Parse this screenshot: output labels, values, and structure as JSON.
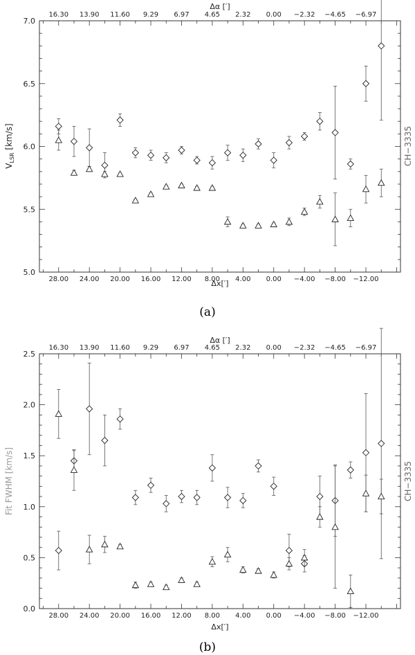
{
  "chart_data": [
    {
      "type": "scatter",
      "caption": "(a)",
      "ylabel_main": "V",
      "ylabel_sub": "LSR",
      "ylabel_unit": " [km/s]",
      "xlabel_main": "Δx",
      "xlabel_unit": "[′]",
      "top_xlabel_main": "Δα",
      "top_xlabel_unit": " [′]",
      "right_label": "CH−3335",
      "xlim": [
        30.5,
        -16.5
      ],
      "ylim": [
        5.0,
        7.0
      ],
      "xtick_labels": [
        {
          "v": 28,
          "t": "28.00"
        },
        {
          "v": 24,
          "t": "24.00"
        },
        {
          "v": 20,
          "t": "20.00"
        },
        {
          "v": 16,
          "t": "16.00"
        },
        {
          "v": 12,
          "t": "12.00"
        },
        {
          "v": 8,
          "t": "8.00"
        },
        {
          "v": 4,
          "t": "4.00"
        },
        {
          "v": 0,
          "t": "0.00"
        },
        {
          "v": -4,
          "t": "−4.00"
        },
        {
          "v": -8,
          "t": "−8.00"
        },
        {
          "v": -12,
          "t": "−12.00"
        }
      ],
      "top_tick_labels": [
        {
          "v": 28,
          "t": "16.30"
        },
        {
          "v": 24,
          "t": "13.90"
        },
        {
          "v": 20,
          "t": "11.60"
        },
        {
          "v": 16,
          "t": "9.29"
        },
        {
          "v": 12,
          "t": "6.97"
        },
        {
          "v": 8,
          "t": "4.65"
        },
        {
          "v": 4,
          "t": "2.32"
        },
        {
          "v": 0,
          "t": "0.00"
        },
        {
          "v": -4,
          "t": "−2.32"
        },
        {
          "v": -8,
          "t": "−4.65"
        },
        {
          "v": -12,
          "t": "−6.97"
        }
      ],
      "ytick_labels": [
        {
          "v": 5.0,
          "t": "5.0"
        },
        {
          "v": 5.5,
          "t": "5.5"
        },
        {
          "v": 6.0,
          "t": "6.0"
        },
        {
          "v": 6.5,
          "t": "6.5"
        },
        {
          "v": 7.0,
          "t": "7.0"
        }
      ],
      "series": [
        {
          "marker": "diamond",
          "points": [
            {
              "x": 28,
              "y": 6.16,
              "err": 0.06
            },
            {
              "x": 26,
              "y": 6.04,
              "err": 0.12
            },
            {
              "x": 24,
              "y": 5.99,
              "err": 0.15
            },
            {
              "x": 22,
              "y": 5.85,
              "err": 0.1
            },
            {
              "x": 20,
              "y": 6.21,
              "err": 0.05
            },
            {
              "x": 18,
              "y": 5.95,
              "err": 0.04
            },
            {
              "x": 16,
              "y": 5.93,
              "err": 0.04
            },
            {
              "x": 14,
              "y": 5.91,
              "err": 0.04
            },
            {
              "x": 12,
              "y": 5.97,
              "err": 0.03
            },
            {
              "x": 10,
              "y": 5.89,
              "err": 0.03
            },
            {
              "x": 8,
              "y": 5.87,
              "err": 0.05
            },
            {
              "x": 6,
              "y": 5.95,
              "err": 0.06
            },
            {
              "x": 4,
              "y": 5.93,
              "err": 0.05
            },
            {
              "x": 2,
              "y": 6.02,
              "err": 0.04
            },
            {
              "x": 0,
              "y": 5.89,
              "err": 0.06
            },
            {
              "x": -2,
              "y": 6.03,
              "err": 0.05
            },
            {
              "x": -4,
              "y": 6.08,
              "err": 0.03
            },
            {
              "x": -6,
              "y": 6.2,
              "err": 0.07
            },
            {
              "x": -8,
              "y": 6.11,
              "err": 0.37
            },
            {
              "x": -10,
              "y": 5.86,
              "err": 0.04
            },
            {
              "x": -12,
              "y": 6.5,
              "err": 0.14
            },
            {
              "x": -14,
              "y": 6.8,
              "err": 0.59
            }
          ]
        },
        {
          "marker": "triangle",
          "points": [
            {
              "x": 28,
              "y": 6.05,
              "err": 0.08
            },
            {
              "x": 26,
              "y": 5.79,
              "err": 0.02
            },
            {
              "x": 24,
              "y": 5.82,
              "err": 0.02
            },
            {
              "x": 22,
              "y": 5.78,
              "err": 0.02
            },
            {
              "x": 20,
              "y": 5.78,
              "err": 0.01
            },
            {
              "x": 18,
              "y": 5.57,
              "err": 0.01
            },
            {
              "x": 16,
              "y": 5.62,
              "err": 0.01
            },
            {
              "x": 14,
              "y": 5.68,
              "err": 0.01
            },
            {
              "x": 12,
              "y": 5.69,
              "err": 0.01
            },
            {
              "x": 10,
              "y": 5.67,
              "err": 0.01
            },
            {
              "x": 8,
              "y": 5.67,
              "err": 0.01
            },
            {
              "x": 6,
              "y": 5.4,
              "err": 0.04
            },
            {
              "x": 4,
              "y": 5.37,
              "err": 0.01
            },
            {
              "x": 2,
              "y": 5.37,
              "err": 0.01
            },
            {
              "x": 0,
              "y": 5.38,
              "err": 0.01
            },
            {
              "x": -2,
              "y": 5.4,
              "err": 0.03
            },
            {
              "x": -4,
              "y": 5.48,
              "err": 0.03
            },
            {
              "x": -6,
              "y": 5.56,
              "err": 0.05
            },
            {
              "x": -8,
              "y": 5.42,
              "err": 0.21
            },
            {
              "x": -10,
              "y": 5.43,
              "err": 0.07
            },
            {
              "x": -12,
              "y": 5.66,
              "err": 0.11
            },
            {
              "x": -14,
              "y": 5.71,
              "err": 0.11
            }
          ]
        }
      ]
    },
    {
      "type": "scatter",
      "caption": "(b)",
      "ylabel_main": "Fit FWHM",
      "ylabel_sub": "",
      "ylabel_unit": " [km/s]",
      "xlabel_main": "Δx",
      "xlabel_unit": "[′]",
      "top_xlabel_main": "Δα",
      "top_xlabel_unit": " [′]",
      "right_label": "CH−3335",
      "xlim": [
        30.5,
        -16.5
      ],
      "ylim": [
        0.0,
        2.5
      ],
      "xtick_labels": [
        {
          "v": 28,
          "t": "28.00"
        },
        {
          "v": 24,
          "t": "24.00"
        },
        {
          "v": 20,
          "t": "20.00"
        },
        {
          "v": 16,
          "t": "16.00"
        },
        {
          "v": 12,
          "t": "12.00"
        },
        {
          "v": 8,
          "t": "8.00"
        },
        {
          "v": 4,
          "t": "4.00"
        },
        {
          "v": 0,
          "t": "0.00"
        },
        {
          "v": -4,
          "t": "−4.00"
        },
        {
          "v": -8,
          "t": "−8.00"
        },
        {
          "v": -12,
          "t": "−12.00"
        }
      ],
      "top_tick_labels": [
        {
          "v": 28,
          "t": "16.30"
        },
        {
          "v": 24,
          "t": "13.90"
        },
        {
          "v": 20,
          "t": "11.60"
        },
        {
          "v": 16,
          "t": "9.29"
        },
        {
          "v": 12,
          "t": "6.97"
        },
        {
          "v": 8,
          "t": "4.65"
        },
        {
          "v": 4,
          "t": "2.32"
        },
        {
          "v": 0,
          "t": "0.00"
        },
        {
          "v": -4,
          "t": "−2.32"
        },
        {
          "v": -8,
          "t": "−4.65"
        },
        {
          "v": -12,
          "t": "−6.97"
        }
      ],
      "ytick_labels": [
        {
          "v": 0.0,
          "t": "0.0"
        },
        {
          "v": 0.5,
          "t": "0.5"
        },
        {
          "v": 1.0,
          "t": "1.0"
        },
        {
          "v": 1.5,
          "t": "1.5"
        },
        {
          "v": 2.0,
          "t": "2.0"
        },
        {
          "v": 2.5,
          "t": "2.5"
        }
      ],
      "series": [
        {
          "marker": "diamond",
          "points": [
            {
              "x": 28,
              "y": 0.57,
              "err": 0.19
            },
            {
              "x": 26,
              "y": 1.45,
              "err": 0.1
            },
            {
              "x": 24,
              "y": 1.96,
              "err": 0.45
            },
            {
              "x": 22,
              "y": 1.65,
              "err": 0.25
            },
            {
              "x": 20,
              "y": 1.86,
              "err": 0.1
            },
            {
              "x": 18,
              "y": 1.09,
              "err": 0.07
            },
            {
              "x": 16,
              "y": 1.21,
              "err": 0.07
            },
            {
              "x": 14,
              "y": 1.03,
              "err": 0.08
            },
            {
              "x": 12,
              "y": 1.1,
              "err": 0.06
            },
            {
              "x": 10,
              "y": 1.09,
              "err": 0.07
            },
            {
              "x": 8,
              "y": 1.38,
              "err": 0.13
            },
            {
              "x": 6,
              "y": 1.09,
              "err": 0.1
            },
            {
              "x": 4,
              "y": 1.06,
              "err": 0.07
            },
            {
              "x": 2,
              "y": 1.4,
              "err": 0.06
            },
            {
              "x": 0,
              "y": 1.2,
              "err": 0.09
            },
            {
              "x": -2,
              "y": 0.57,
              "err": 0.16
            },
            {
              "x": -4,
              "y": 0.44,
              "err": 0.08
            },
            {
              "x": -6,
              "y": 1.1,
              "err": 0.2
            },
            {
              "x": -8,
              "y": 1.06,
              "err": 0.35
            },
            {
              "x": -10,
              "y": 1.36,
              "err": 0.08
            },
            {
              "x": -12,
              "y": 1.53,
              "err": 0.58
            },
            {
              "x": -14,
              "y": 1.62,
              "err": 1.13
            }
          ]
        },
        {
          "marker": "triangle",
          "points": [
            {
              "x": 28,
              "y": 1.91,
              "err": 0.24
            },
            {
              "x": 26,
              "y": 1.36,
              "err": 0.2
            },
            {
              "x": 24,
              "y": 0.58,
              "err": 0.14
            },
            {
              "x": 22,
              "y": 0.63,
              "err": 0.08
            },
            {
              "x": 20,
              "y": 0.61,
              "err": 0.02
            },
            {
              "x": 18,
              "y": 0.23,
              "err": 0.03
            },
            {
              "x": 16,
              "y": 0.24,
              "err": 0.02
            },
            {
              "x": 14,
              "y": 0.21,
              "err": 0.02
            },
            {
              "x": 12,
              "y": 0.28,
              "err": 0.02
            },
            {
              "x": 10,
              "y": 0.24,
              "err": 0.02
            },
            {
              "x": 8,
              "y": 0.46,
              "err": 0.05
            },
            {
              "x": 6,
              "y": 0.53,
              "err": 0.07
            },
            {
              "x": 4,
              "y": 0.38,
              "err": 0.03
            },
            {
              "x": 2,
              "y": 0.37,
              "err": 0.02
            },
            {
              "x": 0,
              "y": 0.33,
              "err": 0.03
            },
            {
              "x": -2,
              "y": 0.44,
              "err": 0.06
            },
            {
              "x": -4,
              "y": 0.5,
              "err": 0.08
            },
            {
              "x": -6,
              "y": 0.9,
              "err": 0.1
            },
            {
              "x": -8,
              "y": 0.8,
              "err": 0.6
            },
            {
              "x": -10,
              "y": 0.17,
              "err": 0.16
            },
            {
              "x": -12,
              "y": 1.13,
              "err": 0.18
            },
            {
              "x": -14,
              "y": 1.1,
              "err": 0.17
            }
          ]
        }
      ]
    }
  ]
}
